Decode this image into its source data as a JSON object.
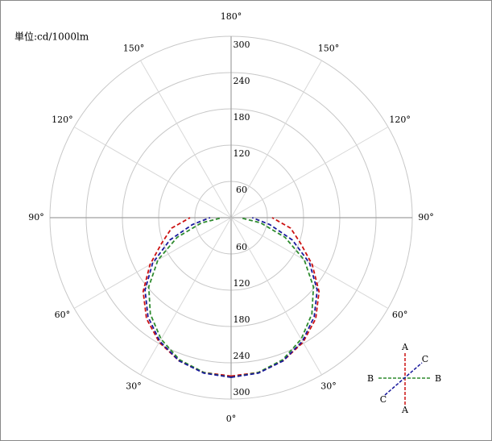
{
  "chart_data": {
    "type": "polar",
    "unit_label": "単位:cd/1000lm",
    "x": [
      0,
      10,
      20,
      30,
      40,
      50,
      60,
      70,
      80,
      90
    ],
    "series": [
      {
        "name": "A",
        "color": "#cc1111",
        "values": [
          262,
          260,
          252,
          238,
          218,
          190,
          155,
          122,
          100,
          68
        ]
      },
      {
        "name": "B",
        "color": "#2e8b2e",
        "values": [
          264,
          260,
          250,
          232,
          208,
          178,
          140,
          95,
          50,
          15
        ]
      },
      {
        "name": "C",
        "color": "#1a1a9c",
        "values": [
          264,
          261,
          252,
          236,
          214,
          186,
          150,
          108,
          65,
          35
        ]
      }
    ],
    "rlim": [
      0,
      300
    ],
    "rticks": [
      60,
      120,
      180,
      240,
      300
    ],
    "angleticks": [
      {
        "value": 0,
        "label": "0°"
      },
      {
        "value": 30,
        "label": "30°"
      },
      {
        "value": 60,
        "label": "60°"
      },
      {
        "value": 90,
        "label": "90°"
      },
      {
        "value": 120,
        "label": "120°"
      },
      {
        "value": 150,
        "label": "150°"
      },
      {
        "value": 180,
        "label": "180°"
      }
    ],
    "grid": true
  }
}
